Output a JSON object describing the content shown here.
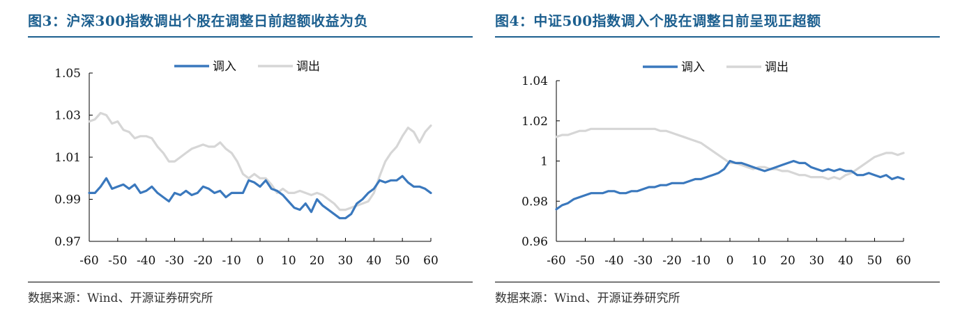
{
  "figures": [
    {
      "title": "图3：沪深300指数调出个股在调整日前超额收益为负",
      "source": "数据来源：Wind、开源证券研究所",
      "chart_data": {
        "type": "line",
        "title": "图3：沪深300指数调出个股在调整日前超额收益为负",
        "x": [
          -60,
          -58,
          -56,
          -54,
          -52,
          -50,
          -48,
          -46,
          -44,
          -42,
          -40,
          -38,
          -36,
          -34,
          -32,
          -30,
          -28,
          -26,
          -24,
          -22,
          -20,
          -18,
          -16,
          -14,
          -12,
          -10,
          -8,
          -6,
          -4,
          -2,
          0,
          2,
          4,
          6,
          8,
          10,
          12,
          14,
          16,
          18,
          20,
          22,
          24,
          26,
          28,
          30,
          32,
          34,
          36,
          38,
          40,
          42,
          44,
          46,
          48,
          50,
          52,
          54,
          56,
          58,
          60
        ],
        "xticks": [
          "-60",
          "-50",
          "-40",
          "-30",
          "-20",
          "-10",
          "0",
          "10",
          "20",
          "30",
          "40",
          "50",
          "60"
        ],
        "xlim": [
          -60,
          60
        ],
        "yticks": [
          "0.97",
          "0.99",
          "1.01",
          "1.03",
          "1.05"
        ],
        "ylim": [
          0.97,
          1.05
        ],
        "legend_position": "top-center",
        "series": [
          {
            "name": "调入",
            "color": "#3a78bd",
            "values": [
              0.993,
              0.993,
              0.996,
              1.0,
              0.995,
              0.996,
              0.997,
              0.995,
              0.997,
              0.993,
              0.994,
              0.996,
              0.993,
              0.991,
              0.989,
              0.993,
              0.992,
              0.994,
              0.992,
              0.993,
              0.996,
              0.995,
              0.993,
              0.994,
              0.991,
              0.993,
              0.993,
              0.993,
              0.999,
              0.998,
              0.996,
              0.999,
              0.995,
              0.994,
              0.992,
              0.989,
              0.986,
              0.985,
              0.988,
              0.984,
              0.99,
              0.987,
              0.985,
              0.983,
              0.981,
              0.981,
              0.983,
              0.988,
              0.99,
              0.993,
              0.995,
              0.999,
              0.998,
              0.999,
              0.999,
              1.001,
              0.998,
              0.996,
              0.996,
              0.995,
              0.993
            ]
          },
          {
            "name": "调出",
            "color": "#d6d6d6",
            "values": [
              1.027,
              1.028,
              1.031,
              1.03,
              1.026,
              1.027,
              1.023,
              1.022,
              1.019,
              1.02,
              1.02,
              1.019,
              1.015,
              1.012,
              1.008,
              1.008,
              1.01,
              1.012,
              1.014,
              1.015,
              1.016,
              1.015,
              1.015,
              1.017,
              1.014,
              1.012,
              1.008,
              1.002,
              1.0,
              1.002,
              1.0,
              1.0,
              0.997,
              0.993,
              0.995,
              0.993,
              0.993,
              0.994,
              0.993,
              0.992,
              0.993,
              0.992,
              0.99,
              0.988,
              0.985,
              0.985,
              0.986,
              0.987,
              0.988,
              0.989,
              0.993,
              1.001,
              1.008,
              1.012,
              1.015,
              1.02,
              1.024,
              1.022,
              1.017,
              1.022,
              1.025
            ]
          }
        ]
      }
    },
    {
      "title": "图4：中证500指数调入个股在调整日前呈现正超额",
      "source": "数据来源：Wind、开源证券研究所",
      "chart_data": {
        "type": "line",
        "title": "图4：中证500指数调入个股在调整日前呈现正超额",
        "x": [
          -60,
          -58,
          -56,
          -54,
          -52,
          -50,
          -48,
          -46,
          -44,
          -42,
          -40,
          -38,
          -36,
          -34,
          -32,
          -30,
          -28,
          -26,
          -24,
          -22,
          -20,
          -18,
          -16,
          -14,
          -12,
          -10,
          -8,
          -6,
          -4,
          -2,
          0,
          2,
          4,
          6,
          8,
          10,
          12,
          14,
          16,
          18,
          20,
          22,
          24,
          26,
          28,
          30,
          32,
          34,
          36,
          38,
          40,
          42,
          44,
          46,
          48,
          50,
          52,
          54,
          56,
          58,
          60
        ],
        "xticks": [
          "-60",
          "-50",
          "-40",
          "-30",
          "-20",
          "-10",
          "0",
          "10",
          "20",
          "30",
          "40",
          "50",
          "60"
        ],
        "xlim": [
          -60,
          60
        ],
        "yticks": [
          "0.96",
          "0.98",
          "1",
          "1.02",
          "1.04"
        ],
        "ylim": [
          0.96,
          1.04
        ],
        "legend_position": "top-center",
        "series": [
          {
            "name": "调入",
            "color": "#3a78bd",
            "values": [
              0.976,
              0.978,
              0.979,
              0.981,
              0.982,
              0.983,
              0.984,
              0.984,
              0.984,
              0.985,
              0.985,
              0.984,
              0.984,
              0.985,
              0.985,
              0.986,
              0.987,
              0.987,
              0.988,
              0.988,
              0.989,
              0.989,
              0.989,
              0.99,
              0.991,
              0.991,
              0.992,
              0.993,
              0.994,
              0.996,
              1.0,
              0.999,
              0.999,
              0.998,
              0.997,
              0.996,
              0.995,
              0.996,
              0.997,
              0.998,
              0.999,
              1.0,
              0.999,
              0.999,
              0.997,
              0.996,
              0.995,
              0.996,
              0.995,
              0.996,
              0.995,
              0.995,
              0.993,
              0.993,
              0.994,
              0.993,
              0.992,
              0.993,
              0.991,
              0.992,
              0.991
            ]
          },
          {
            "name": "调出",
            "color": "#d6d6d6",
            "values": [
              1.012,
              1.013,
              1.013,
              1.014,
              1.015,
              1.015,
              1.016,
              1.016,
              1.016,
              1.016,
              1.016,
              1.016,
              1.016,
              1.016,
              1.016,
              1.016,
              1.016,
              1.016,
              1.015,
              1.015,
              1.014,
              1.013,
              1.012,
              1.011,
              1.01,
              1.009,
              1.007,
              1.005,
              1.003,
              1.001,
              0.999,
              0.999,
              0.998,
              0.997,
              0.996,
              0.997,
              0.997,
              0.996,
              0.996,
              0.995,
              0.995,
              0.994,
              0.993,
              0.993,
              0.992,
              0.992,
              0.992,
              0.991,
              0.992,
              0.991,
              0.993,
              0.994,
              0.996,
              0.998,
              1.0,
              1.002,
              1.003,
              1.004,
              1.004,
              1.003,
              1.004
            ]
          }
        ]
      }
    }
  ]
}
